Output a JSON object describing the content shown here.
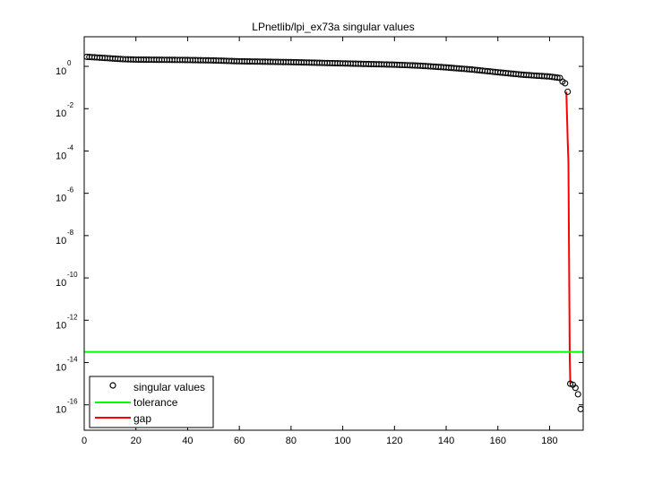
{
  "chart_data": {
    "type": "scatter",
    "title": "LPnetlib/lpi_ex73a singular values",
    "xlabel": "",
    "ylabel": "",
    "xlim": [
      0,
      193
    ],
    "ylim_log10": [
      -17.2,
      1.4
    ],
    "y_scale": "log",
    "grid": false,
    "legend_position": "bottom-left",
    "x_ticks": [
      {
        "value": 0,
        "label": "0"
      },
      {
        "value": 20,
        "label": "20"
      },
      {
        "value": 40,
        "label": "40"
      },
      {
        "value": 60,
        "label": "60"
      },
      {
        "value": 80,
        "label": "80"
      },
      {
        "value": 100,
        "label": "100"
      },
      {
        "value": 120,
        "label": "120"
      },
      {
        "value": 140,
        "label": "140"
      },
      {
        "value": 160,
        "label": "160"
      },
      {
        "value": 180,
        "label": "180"
      }
    ],
    "y_ticks": [
      {
        "exp": 0,
        "base": "10",
        "exponent": "0"
      },
      {
        "exp": -2,
        "base": "10",
        "exponent": "-2"
      },
      {
        "exp": -4,
        "base": "10",
        "exponent": "-4"
      },
      {
        "exp": -6,
        "base": "10",
        "exponent": "-6"
      },
      {
        "exp": -8,
        "base": "10",
        "exponent": "-8"
      },
      {
        "exp": -10,
        "base": "10",
        "exponent": "-10"
      },
      {
        "exp": -12,
        "base": "10",
        "exponent": "-12"
      },
      {
        "exp": -14,
        "base": "10",
        "exponent": "-14"
      },
      {
        "exp": -16,
        "base": "10",
        "exponent": "-16"
      }
    ],
    "series": [
      {
        "name": "singular values",
        "marker": "circle",
        "color": "#000000",
        "profile_log10": [
          [
            1,
            0.45
          ],
          [
            5,
            0.42
          ],
          [
            10,
            0.38
          ],
          [
            15,
            0.34
          ],
          [
            20,
            0.32
          ],
          [
            30,
            0.31
          ],
          [
            40,
            0.3
          ],
          [
            50,
            0.28
          ],
          [
            60,
            0.24
          ],
          [
            70,
            0.22
          ],
          [
            80,
            0.2
          ],
          [
            90,
            0.17
          ],
          [
            100,
            0.14
          ],
          [
            110,
            0.11
          ],
          [
            120,
            0.08
          ],
          [
            130,
            0.03
          ],
          [
            140,
            -0.05
          ],
          [
            150,
            -0.15
          ],
          [
            160,
            -0.28
          ],
          [
            170,
            -0.4
          ],
          [
            180,
            -0.48
          ],
          [
            184,
            -0.55
          ]
        ],
        "tail": [
          {
            "x": 185,
            "log10": -0.72
          },
          {
            "x": 186,
            "log10": -0.8
          },
          {
            "x": 187,
            "log10": -1.2
          },
          {
            "x": 188,
            "log10": -15.0
          },
          {
            "x": 189,
            "log10": -15.05
          },
          {
            "x": 190,
            "log10": -15.2
          },
          {
            "x": 191,
            "log10": -15.5
          },
          {
            "x": 192,
            "log10": -16.2
          }
        ]
      },
      {
        "name": "tolerance",
        "color": "#00ff00",
        "log10_value": -13.5
      },
      {
        "name": "gap",
        "color": "#ff0000",
        "points": [
          {
            "x": 186.5,
            "log10": -1.2
          },
          {
            "x": 187.0,
            "log10": -3.5
          },
          {
            "x": 187.3,
            "log10": -4.5
          },
          {
            "x": 187.8,
            "log10": -13.8
          },
          {
            "x": 188.0,
            "log10": -15.0
          }
        ]
      }
    ]
  }
}
